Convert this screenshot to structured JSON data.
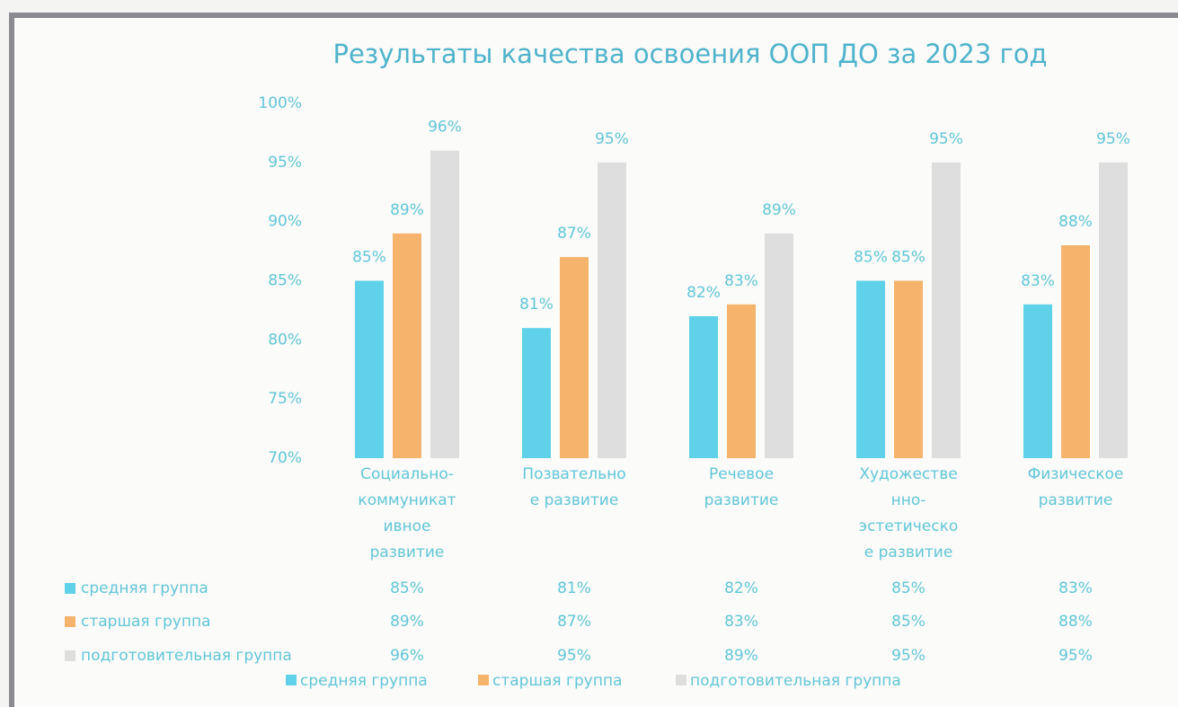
{
  "chart_data": {
    "type": "bar",
    "title": "Результаты качества освоения ООП ДО за 2023 год",
    "categories": [
      "Социально-коммуникативное развитие",
      "Позвательное развитие",
      "Речевое развитие",
      "Художественно-эстетическое развитие",
      "Физическое развитие"
    ],
    "series": [
      {
        "name": "средняя группа",
        "color": "#5fd2ea",
        "values": [
          85,
          81,
          82,
          85,
          83
        ],
        "value_labels": [
          "85%",
          "81%",
          "82%",
          "85%",
          "83%"
        ]
      },
      {
        "name": "старшая группа",
        "color": "#f6b36c",
        "values": [
          89,
          87,
          83,
          85,
          88
        ],
        "value_labels": [
          "89%",
          "87%",
          "83%",
          "85%",
          "88%"
        ]
      },
      {
        "name": "подготовительная группа",
        "color": "#dedede",
        "values": [
          96,
          95,
          89,
          95,
          95
        ],
        "value_labels": [
          "96%",
          "95%",
          "89%",
          "95%",
          "95%"
        ]
      }
    ],
    "ylim": [
      70,
      100
    ],
    "yticks": [
      {
        "value": 70,
        "label": "70%"
      },
      {
        "value": 75,
        "label": "75%"
      },
      {
        "value": 80,
        "label": "80%"
      },
      {
        "value": 85,
        "label": "85%"
      },
      {
        "value": 90,
        "label": "90%"
      },
      {
        "value": 95,
        "label": "95%"
      },
      {
        "value": 100,
        "label": "100%"
      }
    ],
    "grid": false,
    "data_table": true,
    "legend": "bottom"
  }
}
